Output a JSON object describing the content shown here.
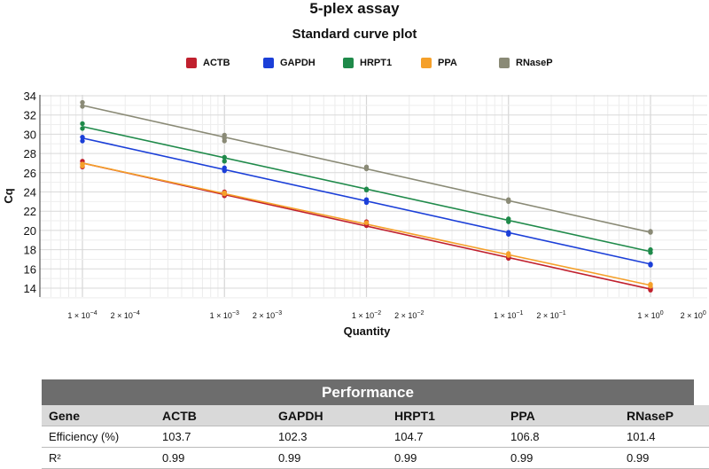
{
  "chart_data": {
    "type": "scatter",
    "title": "5-plex assay",
    "subtitle": "Standard curve plot",
    "xlabel": "Quantity",
    "ylabel": "Cq",
    "x_scale": "log",
    "xlim": [
      5e-05,
      2
    ],
    "ylim": [
      13,
      34
    ],
    "y_ticks": [
      14,
      16,
      18,
      20,
      22,
      24,
      26,
      28,
      30,
      32,
      34
    ],
    "x_tick_labels": [
      {
        "value": 0.0001,
        "base": "1 × 10",
        "exp": "−4"
      },
      {
        "value": 0.0002,
        "base": "2 × 10",
        "exp": "−4"
      },
      {
        "value": 0.001,
        "base": "1 × 10",
        "exp": "−3"
      },
      {
        "value": 0.002,
        "base": "2 × 10",
        "exp": "−3"
      },
      {
        "value": 0.01,
        "base": "1 × 10",
        "exp": "−2"
      },
      {
        "value": 0.02,
        "base": "2 × 10",
        "exp": "−2"
      },
      {
        "value": 0.1,
        "base": "1 × 10",
        "exp": "−1"
      },
      {
        "value": 0.2,
        "base": "2 × 10",
        "exp": "−1"
      },
      {
        "value": 1,
        "base": "1 × 10",
        "exp": "0"
      },
      {
        "value": 2,
        "base": "2 × 10",
        "exp": "0"
      }
    ],
    "grid": true,
    "legend_position": "top",
    "x": [
      0.0001,
      0.001,
      0.01,
      0.1,
      1
    ],
    "series": [
      {
        "name": "ACTB",
        "color": "#c0202e",
        "points": [
          [
            0.0001,
            27.2
          ],
          [
            0.0001,
            26.9
          ],
          [
            0.0001,
            26.6
          ],
          [
            0.001,
            24.0
          ],
          [
            0.001,
            23.8
          ],
          [
            0.001,
            23.6
          ],
          [
            0.01,
            20.9
          ],
          [
            0.01,
            20.7
          ],
          [
            0.01,
            20.5
          ],
          [
            0.1,
            17.3
          ],
          [
            0.1,
            17.2
          ],
          [
            0.1,
            17.1
          ],
          [
            1,
            14.0
          ],
          [
            1,
            13.9
          ],
          [
            1,
            13.8
          ]
        ],
        "fit": [
          27.0,
          13.9
        ]
      },
      {
        "name": "GAPDH",
        "color": "#1b3fd8",
        "points": [
          [
            0.0001,
            29.7
          ],
          [
            0.0001,
            29.3
          ],
          [
            0.001,
            26.5
          ],
          [
            0.001,
            26.2
          ],
          [
            0.01,
            23.2
          ],
          [
            0.01,
            22.9
          ],
          [
            0.1,
            19.8
          ],
          [
            0.1,
            19.6
          ],
          [
            1,
            16.5
          ],
          [
            1,
            16.4
          ]
        ],
        "fit": [
          29.6,
          16.5
        ]
      },
      {
        "name": "HRPT1",
        "color": "#1f8a4a",
        "points": [
          [
            0.0001,
            31.1
          ],
          [
            0.0001,
            30.6
          ],
          [
            0.001,
            27.6
          ],
          [
            0.001,
            27.2
          ],
          [
            0.01,
            24.3
          ],
          [
            0.01,
            24.2
          ],
          [
            0.1,
            21.2
          ],
          [
            0.1,
            20.9
          ],
          [
            1,
            18.0
          ],
          [
            1,
            17.7
          ]
        ],
        "fit": [
          30.8,
          17.8
        ]
      },
      {
        "name": "PPA",
        "color": "#f5a02a",
        "points": [
          [
            0.0001,
            26.9
          ],
          [
            0.0001,
            26.7
          ],
          [
            0.001,
            23.9
          ],
          [
            0.001,
            23.8
          ],
          [
            0.01,
            20.8
          ],
          [
            0.1,
            17.6
          ],
          [
            0.1,
            17.4
          ],
          [
            1,
            14.4
          ],
          [
            1,
            14.2
          ]
        ],
        "fit": [
          27.0,
          14.3
        ]
      },
      {
        "name": "RNaseP",
        "color": "#8a8a76",
        "points": [
          [
            0.0001,
            33.3
          ],
          [
            0.0001,
            32.9
          ],
          [
            0.001,
            29.9
          ],
          [
            0.001,
            29.6
          ],
          [
            0.001,
            29.3
          ],
          [
            0.01,
            26.6
          ],
          [
            0.01,
            26.4
          ],
          [
            0.1,
            23.2
          ],
          [
            0.1,
            23.0
          ],
          [
            1,
            19.9
          ],
          [
            1,
            19.8
          ]
        ],
        "fit": [
          33.0,
          19.8
        ]
      }
    ]
  },
  "performance": {
    "title": "Performance",
    "columns": [
      "Gene",
      "ACTB",
      "GAPDH",
      "HRPT1",
      "PPA",
      "RNaseP"
    ],
    "rows": [
      [
        "Efficiency (%)",
        "103.7",
        "102.3",
        "104.7",
        "106.8",
        "101.4"
      ],
      [
        "R²",
        "0.99",
        "0.99",
        "0.99",
        "0.99",
        "0.99"
      ]
    ]
  }
}
